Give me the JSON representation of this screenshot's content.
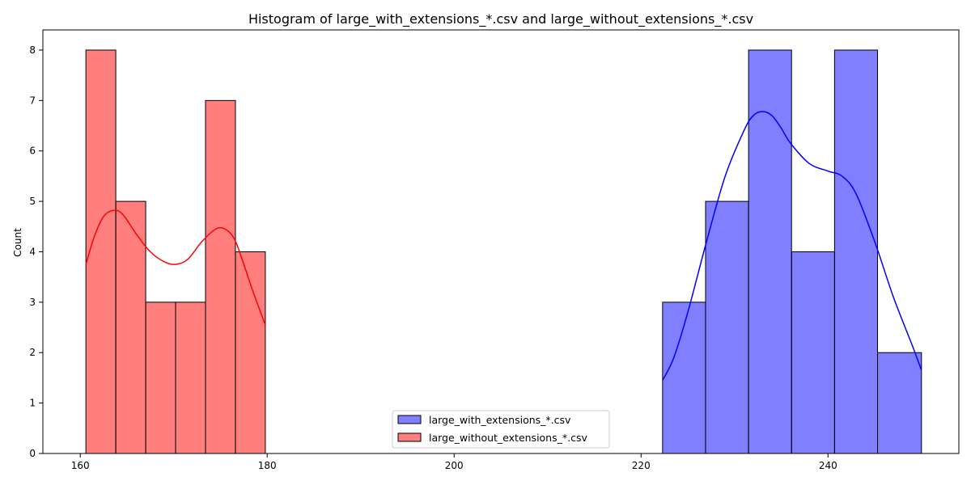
{
  "chart_data": {
    "type": "bar",
    "title": "Histogram of large_with_extensions_*.csv and large_without_extensions_*.csv",
    "xlabel": "",
    "ylabel": "Count",
    "xlim": [
      156,
      254
    ],
    "ylim": [
      0,
      8.4
    ],
    "xticks": [
      160,
      180,
      200,
      220,
      240
    ],
    "yticks": [
      0,
      1,
      2,
      3,
      4,
      5,
      6,
      7,
      8
    ],
    "grid": false,
    "legend_position": "lower-center",
    "series": [
      {
        "name": "large_with_extensions_*.csv",
        "color": "#0000ff",
        "bin_edges": [
          222.3,
          226.9,
          231.5,
          236.1,
          240.7,
          245.3,
          250.0
        ],
        "counts": [
          3,
          5,
          8,
          4,
          8,
          2
        ],
        "kde": {
          "x": [
            222.3,
            223.5,
            225,
            227,
            229,
            231,
            232,
            233,
            234,
            235,
            236,
            238,
            240,
            241.5,
            243,
            245,
            247,
            249,
            250
          ],
          "y": [
            1.45,
            1.9,
            2.8,
            4.2,
            5.5,
            6.4,
            6.7,
            6.78,
            6.7,
            6.45,
            6.15,
            5.75,
            5.6,
            5.5,
            5.15,
            4.2,
            3.1,
            2.15,
            1.65
          ]
        }
      },
      {
        "name": "large_without_extensions_*.csv",
        "color": "#ff0000",
        "bin_edges": [
          160.6,
          163.8,
          167.0,
          170.2,
          173.4,
          176.6,
          179.8
        ],
        "counts": [
          8,
          5,
          3,
          3,
          7,
          4
        ],
        "kde": {
          "x": [
            160.6,
            161.5,
            162.5,
            163.5,
            164.5,
            166,
            167.5,
            169,
            170.2,
            171.5,
            173,
            174.5,
            175.5,
            176.5,
            177.5,
            178.5,
            179.8
          ],
          "y": [
            3.75,
            4.3,
            4.7,
            4.82,
            4.75,
            4.35,
            4.0,
            3.8,
            3.75,
            3.85,
            4.2,
            4.45,
            4.45,
            4.25,
            3.75,
            3.2,
            2.55
          ]
        }
      }
    ]
  }
}
